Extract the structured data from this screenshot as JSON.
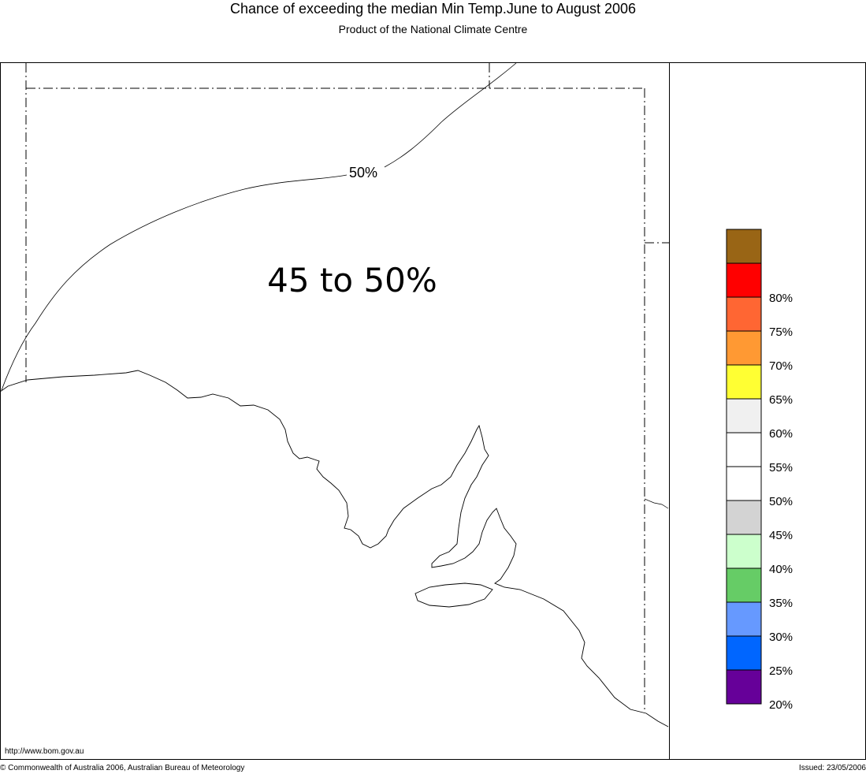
{
  "header": {
    "title": "Chance of exceeding the median Min Temp.June to August 2006",
    "subtitle": "Product of the National Climate Centre"
  },
  "map": {
    "region_label": "45 to 50%",
    "contour_label": "50%"
  },
  "legend": {
    "swatches": [
      {
        "color": "#996515",
        "label": ""
      },
      {
        "color": "#ff0000",
        "label": "80%"
      },
      {
        "color": "#ff6633",
        "label": "75%"
      },
      {
        "color": "#ff9933",
        "label": "70%"
      },
      {
        "color": "#ffff33",
        "label": "65%"
      },
      {
        "color": "#f0f0f0",
        "label": "60%"
      },
      {
        "color": "#ffffff",
        "label": "55%"
      },
      {
        "color": "#ffffff",
        "label": "50%"
      },
      {
        "color": "#d3d3d3",
        "label": "45%"
      },
      {
        "color": "#ccffcc",
        "label": "40%"
      },
      {
        "color": "#66cc66",
        "label": "35%"
      },
      {
        "color": "#6699ff",
        "label": "30%"
      },
      {
        "color": "#0066ff",
        "label": "25%"
      },
      {
        "color": "#660099",
        "label": "20%"
      }
    ]
  },
  "footer": {
    "url": "http://www.bom.gov.au",
    "copyright": "© Commonwealth of Australia 2006, Australian Bureau of Meteorology",
    "issued": "Issued: 23/05/2006"
  }
}
